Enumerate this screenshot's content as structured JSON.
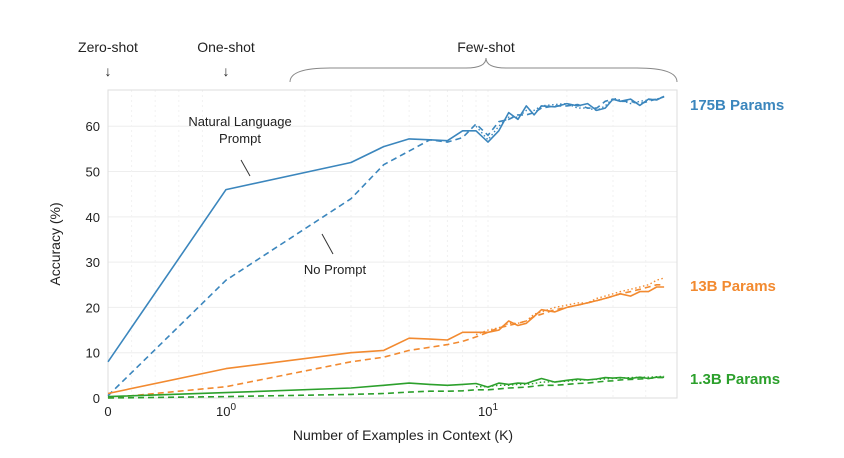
{
  "chart_data": {
    "type": "line",
    "xlabel": "Number of Examples in Context  (K)",
    "ylabel": "Accuracy (%)",
    "x_scale": "symlog",
    "xlim": [
      0,
      47
    ],
    "ylim": [
      0,
      68
    ],
    "x_ticks": [
      {
        "value": 0,
        "label": "0"
      },
      {
        "value": 1,
        "label": "10",
        "sup": "0"
      },
      {
        "value": 10,
        "label": "10",
        "sup": "1"
      }
    ],
    "y_ticks": [
      0,
      10,
      20,
      30,
      40,
      50,
      60
    ],
    "grid": true,
    "regimes": [
      {
        "label": "Zero-shot",
        "arrow": "↓",
        "x": 0
      },
      {
        "label": "One-shot",
        "arrow": "↓",
        "x": 1
      },
      {
        "label": "Few-shot",
        "range": [
          2,
          47
        ]
      }
    ],
    "annotations": [
      {
        "lines": [
          "Natural Language",
          "Prompt"
        ],
        "series": "175B Params",
        "style": "solid"
      },
      {
        "lines": [
          "No Prompt"
        ],
        "series": "175B Params",
        "style": "dashed"
      }
    ],
    "x": [
      0,
      1,
      3,
      4,
      5,
      6,
      7,
      8,
      9,
      10,
      11,
      12,
      13,
      14,
      15,
      16,
      18,
      20,
      22,
      24,
      26,
      28,
      30,
      32,
      35,
      38,
      41,
      44,
      47
    ],
    "series": [
      {
        "name": "175B Params",
        "color": "#3b86bd",
        "style": "solid",
        "values": [
          8,
          46,
          52,
          55.5,
          57.2,
          57.0,
          56.8,
          59,
          59,
          56.5,
          59,
          63,
          61.5,
          64.5,
          62.5,
          64.5,
          64.3,
          65,
          64.5,
          65,
          63.5,
          64,
          66,
          65.5,
          66,
          64.6,
          66,
          65.8,
          66.6
        ]
      },
      {
        "name": "175B Params",
        "color": "#3b86bd",
        "style": "dashed",
        "values": [
          0.5,
          26,
          44,
          51.5,
          54.5,
          57,
          56.5,
          57.5,
          60.5,
          58,
          61,
          61.5,
          62.5,
          62.5,
          63,
          64,
          64.5,
          64.5,
          64.8,
          64,
          64,
          65.5,
          66,
          65.5,
          65.5,
          65,
          65.5,
          66,
          66.5
        ]
      },
      {
        "name": "175B Params",
        "color": "#3b86bd",
        "style": "dotted",
        "values": [
          null,
          null,
          null,
          null,
          null,
          null,
          null,
          null,
          60,
          57,
          60,
          62,
          62,
          63.5,
          63.5,
          64.5,
          64.8,
          65,
          64,
          64,
          63.5,
          64.5,
          66.2,
          65.8,
          65,
          65.5,
          65.8,
          66,
          66.5
        ]
      },
      {
        "name": "13B Params",
        "color": "#f28a30",
        "style": "solid",
        "values": [
          1,
          6.5,
          10,
          10.5,
          13.2,
          13.0,
          12.8,
          14.5,
          14.5,
          14.5,
          15,
          17,
          16,
          16.5,
          18,
          19.5,
          19,
          20,
          20.5,
          21,
          21.5,
          22,
          22.5,
          23,
          22.5,
          23.5,
          23.5,
          24.5,
          24.5
        ]
      },
      {
        "name": "13B Params",
        "color": "#f28a30",
        "style": "dashed",
        "values": [
          0,
          2.5,
          8,
          9,
          10.5,
          11.2,
          11.8,
          12.5,
          13.5,
          14.5,
          15.5,
          16,
          16.5,
          17,
          18,
          18.5,
          19.5,
          20,
          20.5,
          21,
          21.5,
          22,
          22.5,
          23,
          23.5,
          24,
          24.5,
          25,
          25
        ]
      },
      {
        "name": "13B Params",
        "color": "#f28a30",
        "style": "dotted",
        "values": [
          null,
          null,
          null,
          null,
          null,
          null,
          null,
          null,
          14,
          15,
          15.5,
          16.5,
          16.5,
          17,
          18.5,
          19,
          20,
          20.5,
          21,
          21,
          22,
          22.5,
          23,
          23.5,
          24,
          24.5,
          25,
          26,
          26.5
        ]
      },
      {
        "name": "1.3B Params",
        "color": "#2ca02c",
        "style": "solid",
        "values": [
          0.3,
          1.2,
          2.2,
          2.8,
          3.3,
          3.0,
          2.8,
          3.0,
          3.2,
          2.4,
          3.3,
          3.0,
          3.3,
          3.2,
          3.8,
          4.3,
          3.5,
          3.9,
          4.2,
          4.0,
          4.2,
          4.5,
          4.4,
          4.5,
          4.3,
          4.6,
          4.3,
          4.6,
          4.6
        ]
      },
      {
        "name": "1.3B Params",
        "color": "#2ca02c",
        "style": "dashed",
        "values": [
          0,
          0.3,
          0.8,
          1.0,
          1.3,
          1.5,
          1.5,
          1.6,
          1.8,
          1.8,
          2.0,
          2.2,
          2.3,
          2.4,
          2.6,
          2.8,
          2.8,
          3.0,
          3.2,
          3.3,
          3.5,
          3.7,
          3.8,
          4.0,
          4.1,
          4.2,
          4.3,
          4.5,
          4.5
        ]
      },
      {
        "name": "1.3B Params",
        "color": "#2ca02c",
        "style": "dotted",
        "values": [
          null,
          null,
          null,
          null,
          null,
          null,
          null,
          null,
          2.5,
          2.5,
          2.8,
          2.8,
          3.0,
          3.0,
          3.2,
          3.5,
          3.6,
          3.7,
          3.9,
          4.0,
          4.1,
          4.2,
          4.3,
          4.4,
          4.5,
          4.6,
          4.6,
          4.7,
          4.8
        ]
      }
    ],
    "series_labels": [
      {
        "text": "175B Params",
        "color": "#3b86bd"
      },
      {
        "text": "13B Params",
        "color": "#f28a30"
      },
      {
        "text": "1.3B Params",
        "color": "#2ca02c"
      }
    ]
  }
}
